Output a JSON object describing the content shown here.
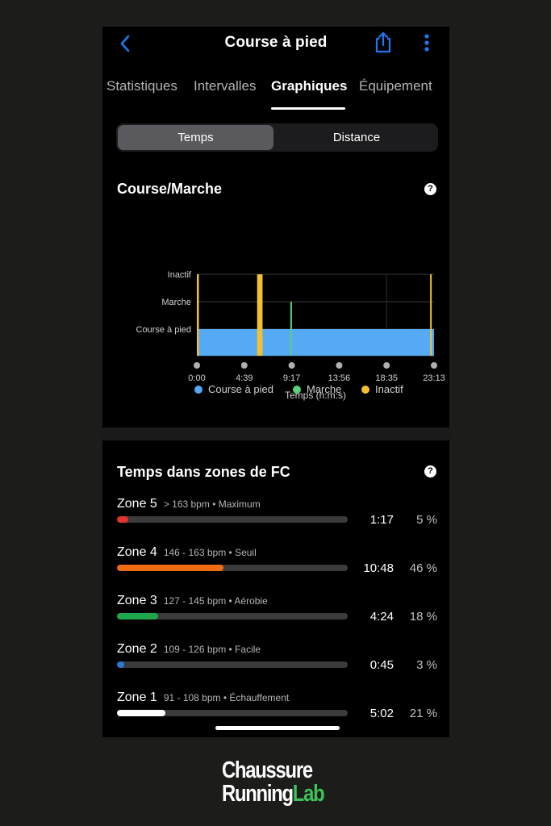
{
  "nav": {
    "title": "Course à pied",
    "back_icon": "chevron-left-icon",
    "share_icon": "share-icon",
    "more_icon": "more-vertical-icon"
  },
  "tabs": [
    {
      "label": "Statistiques",
      "active": false
    },
    {
      "label": "Intervalles",
      "active": false
    },
    {
      "label": "Graphiques",
      "active": true
    },
    {
      "label": "Équipement",
      "active": false
    }
  ],
  "segmented": {
    "options": [
      {
        "label": "Temps",
        "active": true
      },
      {
        "label": "Distance",
        "active": false
      }
    ]
  },
  "run_walk_card": {
    "title": "Course/Marche",
    "help": "?"
  },
  "chart_data": {
    "type": "bar",
    "title": "",
    "xlabel": "Temps (h:m:s)",
    "ylabel": "",
    "categories": [
      "Course à pied",
      "Marche",
      "Inactif"
    ],
    "x_ticks": [
      "0:00",
      "4:39",
      "9:17",
      "13:56",
      "18:35",
      "23:13"
    ],
    "x_range_seconds": [
      0,
      1393
    ],
    "segments": [
      {
        "state": "Course à pied",
        "start_seconds": 12,
        "end_seconds": 1393
      },
      {
        "state": "Inactif",
        "start_seconds": 0,
        "end_seconds": 12
      },
      {
        "state": "Inactif",
        "start_seconds": 354,
        "end_seconds": 386
      },
      {
        "state": "Marche",
        "start_seconds": 549,
        "end_seconds": 557
      },
      {
        "state": "Inactif",
        "start_seconds": 1370,
        "end_seconds": 1374
      }
    ],
    "series": [
      {
        "name": "Course à pied",
        "color": "#55a9f5"
      },
      {
        "name": "Marche",
        "color": "#5ad07a"
      },
      {
        "name": "Inactif",
        "color": "#f3c032"
      }
    ],
    "legend_position": "bottom",
    "grid": true
  },
  "hr_zones_card": {
    "title": "Temps dans zones de FC",
    "help": "?",
    "zones": [
      {
        "name": "Zone 5",
        "range": "> 163 bpm • Maximum",
        "time": "1:17",
        "percent": "5 %",
        "fraction": 0.05,
        "color": "#e0352b"
      },
      {
        "name": "Zone 4",
        "range": "146 - 163 bpm • Seuil",
        "time": "10:48",
        "percent": "46 %",
        "fraction": 0.46,
        "color": "#f06c12"
      },
      {
        "name": "Zone 3",
        "range": "127 - 145 bpm • Aérobie",
        "time": "4:24",
        "percent": "18 %",
        "fraction": 0.18,
        "color": "#1ea64b"
      },
      {
        "name": "Zone 2",
        "range": "109 - 126 bpm • Facile",
        "time": "0:45",
        "percent": "3 %",
        "fraction": 0.03,
        "color": "#2a79d6"
      },
      {
        "name": "Zone 1",
        "range": "91 - 108 bpm • Échauffement",
        "time": "5:02",
        "percent": "21 %",
        "fraction": 0.21,
        "color": "#ffffff"
      }
    ]
  },
  "logo": {
    "line1": "Chaussure",
    "line2a": "Running",
    "line2b": "Lab"
  }
}
